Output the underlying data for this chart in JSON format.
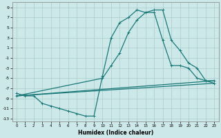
{
  "xlabel": "Humidex (Indice chaleur)",
  "bg_color": "#cce8e8",
  "grid_color": "#aacccc",
  "line_color": "#1a7878",
  "xlim": [
    -0.5,
    23.5
  ],
  "ylim": [
    -13.5,
    10
  ],
  "xticks": [
    0,
    1,
    2,
    3,
    4,
    5,
    6,
    7,
    8,
    9,
    10,
    11,
    12,
    13,
    14,
    15,
    16,
    17,
    18,
    19,
    20,
    21,
    22,
    23
  ],
  "yticks": [
    -13,
    -11,
    -9,
    -7,
    -5,
    -3,
    -1,
    1,
    3,
    5,
    7,
    9
  ],
  "line1_x": [
    0,
    1,
    2,
    3,
    4,
    5,
    6,
    7,
    8,
    9,
    10,
    11,
    12,
    13,
    14,
    15,
    16,
    17,
    18,
    19,
    20,
    21,
    22,
    23
  ],
  "line1_y": [
    -8,
    -8.5,
    -8.5,
    -10,
    -10.5,
    -11,
    -11.5,
    -12,
    -12.5,
    -12.5,
    -4.5,
    3,
    6,
    7,
    8.5,
    8,
    8,
    2.5,
    -2.5,
    -2.5,
    -3,
    -5,
    -5.5,
    -5.5
  ],
  "line2_x": [
    0,
    10,
    11,
    12,
    13,
    14,
    15,
    16,
    17,
    18,
    19,
    20,
    21,
    22,
    23
  ],
  "line2_y": [
    -8.5,
    -5,
    -2.5,
    0,
    4,
    6.5,
    8,
    8.5,
    8.5,
    2.5,
    0.5,
    -2,
    -3,
    -5.5,
    -6
  ],
  "line3_x": [
    0,
    23
  ],
  "line3_y": [
    -8.5,
    -6.0
  ],
  "line4_x": [
    0,
    23
  ],
  "line4_y": [
    -8.5,
    -5.5
  ]
}
